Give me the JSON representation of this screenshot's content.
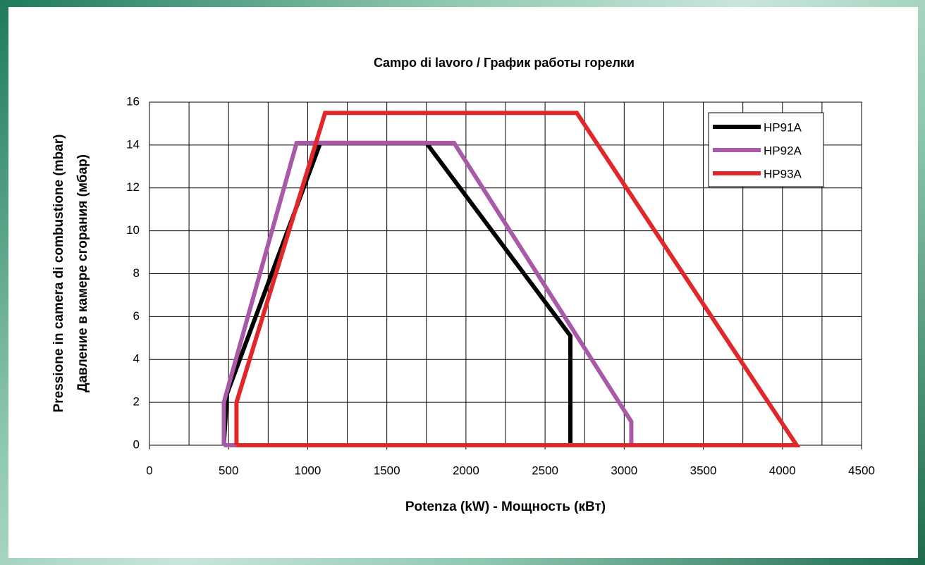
{
  "chart_data": {
    "type": "line",
    "title": "Campo di lavoro / График работы горелки",
    "xlabel": "Potenza (kW) -  Мощность  (кВт)",
    "ylabel": [
      "Pressione in camera di combustione (mbar)",
      "Давление в камере сгорания (мбар)"
    ],
    "xlim": [
      0,
      4500
    ],
    "xticks": [
      0,
      500,
      1000,
      1500,
      2000,
      2500,
      3000,
      3500,
      4000,
      4500
    ],
    "ylim": [
      0,
      16
    ],
    "yticks": [
      0,
      2,
      4,
      6,
      8,
      10,
      12,
      14,
      16
    ],
    "grid": true,
    "legend": "upper right",
    "series": [
      {
        "name": "HP91A",
        "color": "#000000",
        "x": [
          470,
          490,
          1080,
          1750,
          2660,
          2660,
          470
        ],
        "values": [
          0,
          2.4,
          14.1,
          14.1,
          5.1,
          0,
          0
        ]
      },
      {
        "name": "HP92A",
        "color": "#a85aa8",
        "x": [
          470,
          470,
          930,
          1925,
          3045,
          3045,
          470
        ],
        "values": [
          0,
          2,
          14.1,
          14.1,
          1.1,
          0,
          0
        ]
      },
      {
        "name": "HP93A",
        "color": "#e0282a",
        "x": [
          550,
          550,
          1110,
          2700,
          4090,
          550
        ],
        "values": [
          0,
          2,
          15.5,
          15.5,
          0,
          0
        ]
      }
    ]
  }
}
